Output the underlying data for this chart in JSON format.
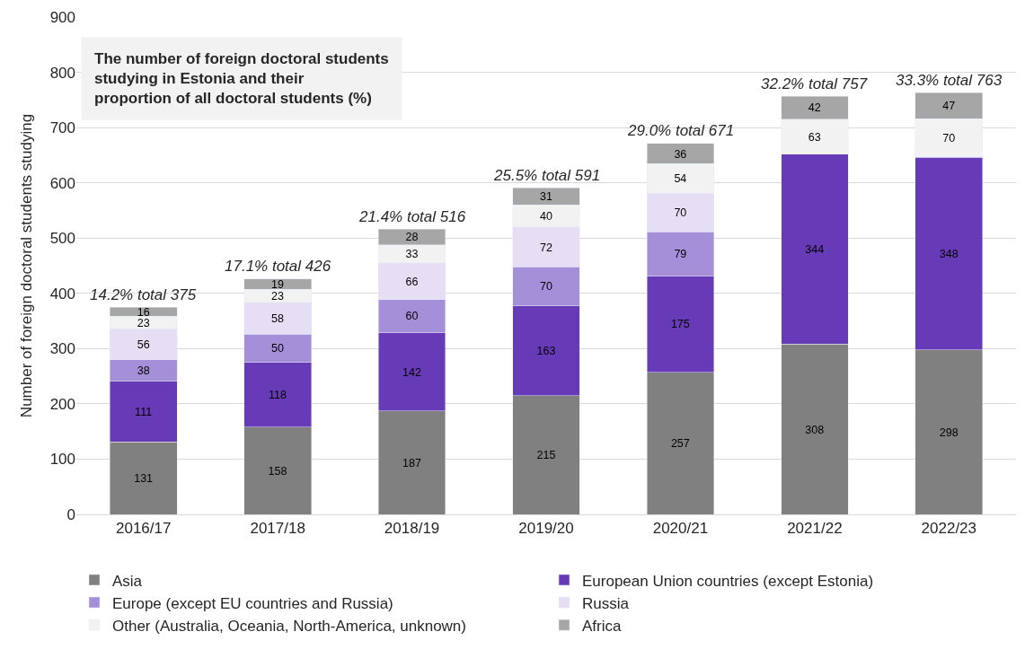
{
  "chart_data": {
    "type": "bar",
    "stacked": true,
    "title": "The number of foreign doctoral students studying in Estonia and their proportion of all doctoral students (%)",
    "ylabel": "Number of foreign doctoral students studying",
    "categories": [
      "2016/17",
      "2017/18",
      "2018/19",
      "2019/20",
      "2020/21",
      "2021/22",
      "2022/23"
    ],
    "series": [
      {
        "name": "Asia",
        "color": "#808080",
        "values": [
          131,
          158,
          187,
          215,
          257,
          308,
          298
        ]
      },
      {
        "name": "European Union countries (except Estonia)",
        "color": "#673ab7",
        "values": [
          111,
          118,
          142,
          163,
          175,
          344,
          348
        ]
      },
      {
        "name": "Europe (except EU countries and Russia)",
        "color": "#a58fd8",
        "values": [
          38,
          50,
          60,
          70,
          79,
          null,
          null
        ]
      },
      {
        "name": "Russia",
        "color": "#e6def5",
        "values": [
          56,
          58,
          66,
          72,
          70,
          null,
          null
        ]
      },
      {
        "name": "Other (Australia, Oceania, North-America, unknown)",
        "color": "#f2f2f2",
        "values": [
          23,
          23,
          33,
          40,
          54,
          63,
          70
        ]
      },
      {
        "name": "Africa",
        "color": "#a6a6a6",
        "values": [
          16,
          19,
          28,
          31,
          36,
          42,
          47
        ]
      }
    ],
    "totals": [
      "14.2% total 375",
      "17.1% total 426",
      "21.4% total 516",
      "25.5% total 591",
      "29.0% total 671",
      "32.2% total 757",
      "33.3% total 763"
    ],
    "data_labels": true,
    "ylim": [
      0,
      900
    ],
    "yticks": [
      0,
      100,
      200,
      300,
      400,
      500,
      600,
      700,
      800,
      900
    ],
    "grid": "y",
    "legend": "bottom"
  }
}
